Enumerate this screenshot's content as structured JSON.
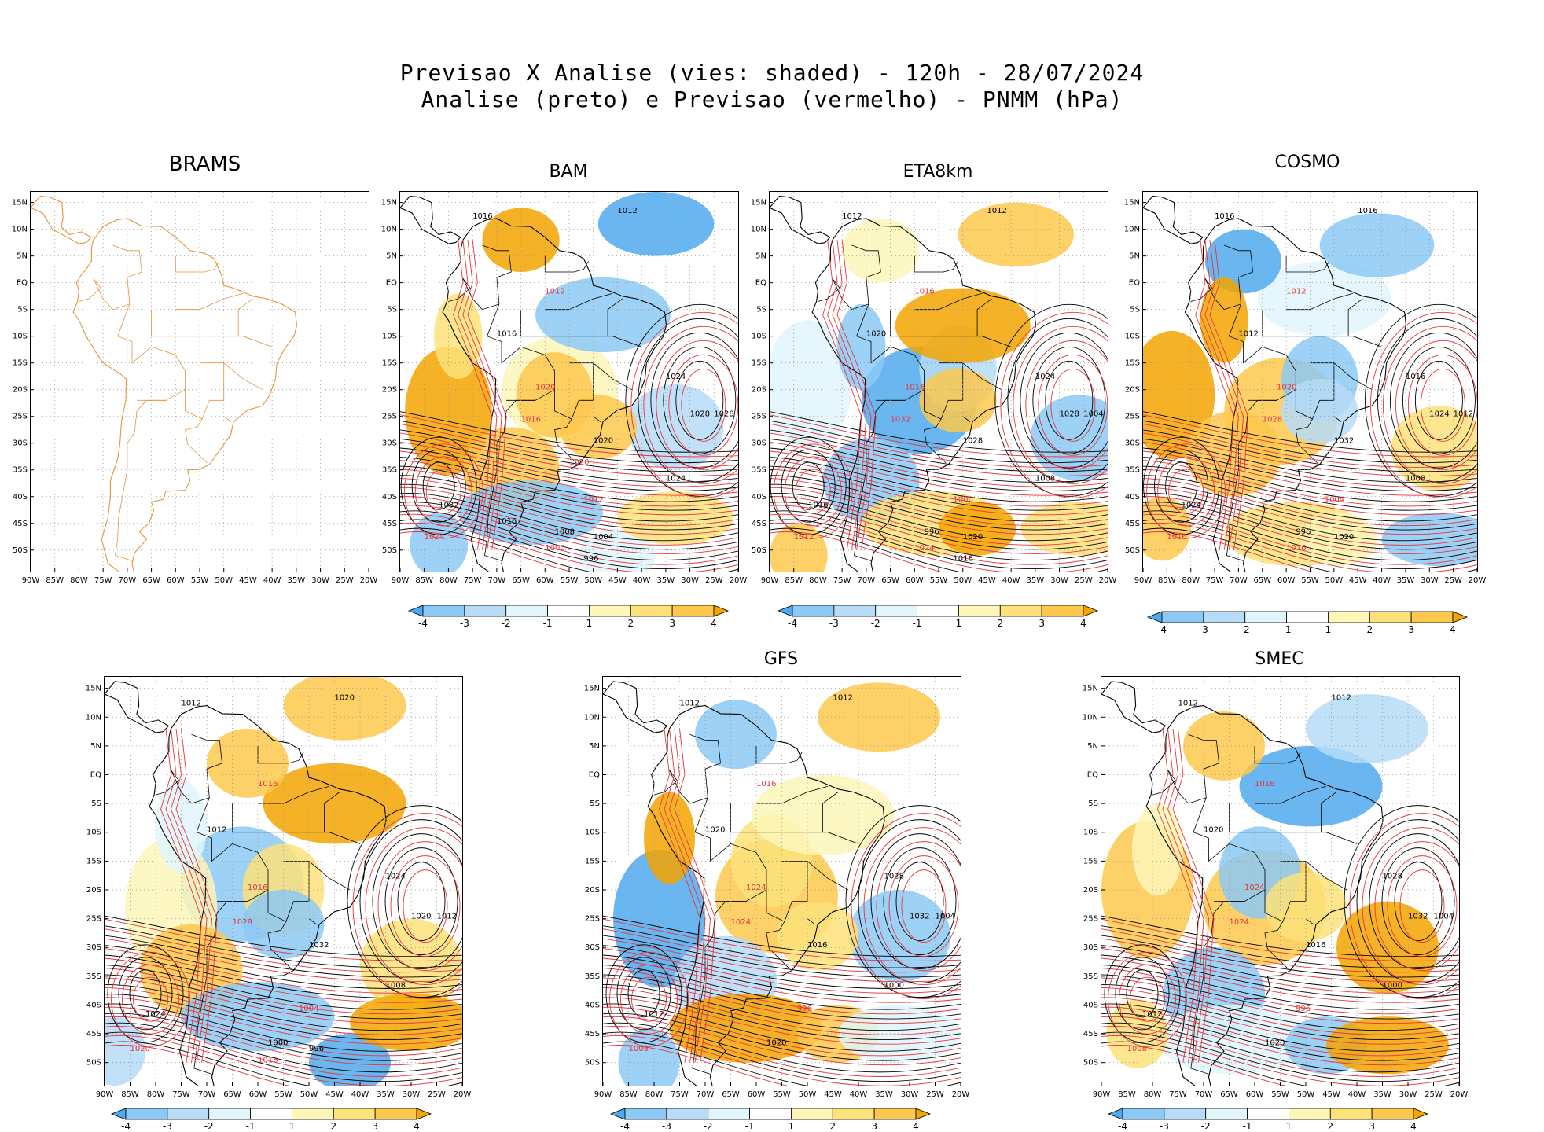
{
  "title": {
    "line1": "Previsao X Analise (vies: shaded) - 120h - 28/07/2024",
    "line2": "Analise (preto) e Previsao (vermelho) - PNMM (hPa)"
  },
  "axes": {
    "lat_labels": [
      "15N",
      "10N",
      "5N",
      "EQ",
      "5S",
      "10S",
      "15S",
      "20S",
      "25S",
      "30S",
      "35S",
      "40S",
      "45S",
      "50S"
    ],
    "lon_labels": [
      "90W",
      "85W",
      "80W",
      "75W",
      "70W",
      "65W",
      "60W",
      "55W",
      "50W",
      "45W",
      "40W",
      "35W",
      "30W",
      "25W",
      "20W"
    ]
  },
  "colorbar": {
    "labels": [
      "-4",
      "-3",
      "-2",
      "-1",
      "1",
      "2",
      "3",
      "4"
    ],
    "colors": [
      "#4fa9ee",
      "#8cc9f5",
      "#b6dcf8",
      "#e1f6fb",
      "#ffffff",
      "#fdf6b8",
      "#fde27a",
      "#fdc84d",
      "#f5a500"
    ]
  },
  "panels": [
    {
      "name": "BRAMS",
      "title": "BRAMS",
      "empty": true
    },
    {
      "name": "BAM",
      "title": "BAM",
      "empty": false,
      "contour_labels": [
        "1016",
        "1012",
        "1012",
        "1016",
        "1020",
        "1024",
        "1028",
        "1016",
        "1020",
        "1032",
        "1024",
        "1028",
        "1024",
        "1012",
        "1008",
        "1004",
        "1000",
        "996",
        "1016",
        "1020"
      ]
    },
    {
      "name": "ETA8km",
      "title": "ETA8km",
      "empty": false,
      "contour_labels": [
        "1012",
        "1016",
        "1012",
        "1020",
        "1016",
        "1024",
        "1028",
        "1032",
        "1028",
        "1016",
        "1012",
        "1004",
        "1008",
        "1000",
        "996",
        "1020",
        "1024",
        "1016"
      ]
    },
    {
      "name": "COSMO",
      "title": "COSMO",
      "empty": false,
      "contour_labels": [
        "1016",
        "1012",
        "1016",
        "1012",
        "1020",
        "1016",
        "1024",
        "1028",
        "1032",
        "1024",
        "1016",
        "1012",
        "1008",
        "1004",
        "996",
        "1020",
        "1016"
      ]
    },
    {
      "name": "panel5",
      "title": "",
      "empty": false,
      "contour_labels": [
        "1012",
        "1016",
        "1020",
        "1012",
        "1016",
        "1024",
        "1020",
        "1028",
        "1032",
        "1024",
        "1020",
        "1012",
        "1008",
        "1004",
        "1000",
        "996",
        "1016"
      ]
    },
    {
      "name": "GFS",
      "title": "GFS",
      "empty": false,
      "contour_labels": [
        "1012",
        "1016",
        "1012",
        "1020",
        "1024",
        "1028",
        "1032",
        "1024",
        "1016",
        "1012",
        "1008",
        "1004",
        "1000",
        "996",
        "1020"
      ]
    },
    {
      "name": "SMEC",
      "title": "SMEC",
      "empty": false,
      "contour_labels": [
        "1012",
        "1016",
        "1012",
        "1020",
        "1024",
        "1028",
        "1032",
        "1024",
        "1016",
        "1012",
        "1008",
        "1004",
        "1000",
        "996",
        "1020"
      ]
    }
  ]
}
